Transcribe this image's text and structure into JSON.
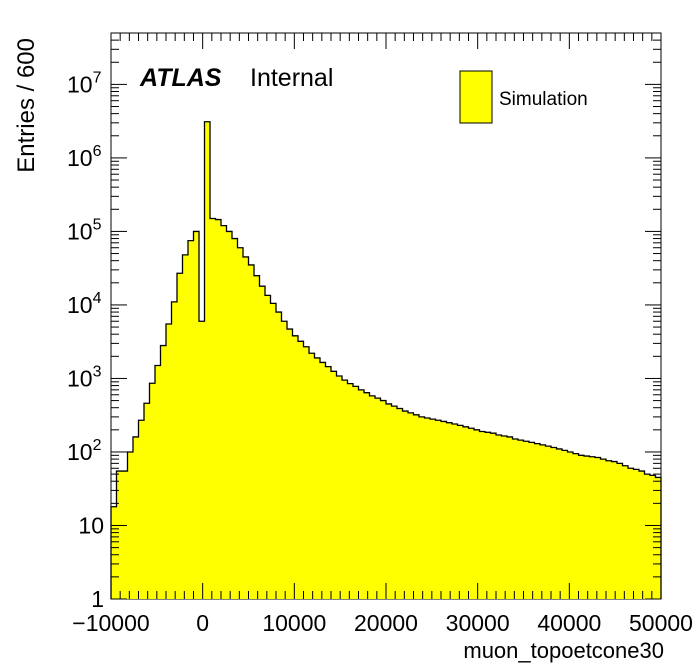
{
  "chart_data": {
    "type": "histogram",
    "experiment": "ATLAS",
    "status": "Internal",
    "xlabel": "muon_topoetcone30",
    "ylabel": "Entries / 600",
    "xlim": [
      -10000,
      50000
    ],
    "ylim": [
      1,
      50000000
    ],
    "yscale": "log",
    "bin_width": 600,
    "x_ticks": [
      "−10000",
      "0",
      "10000",
      "20000",
      "30000",
      "40000",
      "50000"
    ],
    "x_tick_values": [
      -10000,
      0,
      10000,
      20000,
      30000,
      40000,
      50000
    ],
    "y_ticks": [
      {
        "value": 1,
        "base": "1",
        "exp": ""
      },
      {
        "value": 10,
        "base": "10",
        "exp": ""
      },
      {
        "value": 100,
        "base": "10",
        "exp": "2"
      },
      {
        "value": 1000,
        "base": "10",
        "exp": "3"
      },
      {
        "value": 10000,
        "base": "10",
        "exp": "4"
      },
      {
        "value": 100000,
        "base": "10",
        "exp": "5"
      },
      {
        "value": 1000000,
        "base": "10",
        "exp": "6"
      },
      {
        "value": 10000000,
        "base": "10",
        "exp": "7"
      }
    ],
    "legend": {
      "position": "top-right",
      "entries": [
        {
          "name": "Simulation",
          "color": "#ffff00"
        }
      ]
    },
    "series": [
      {
        "name": "Simulation",
        "fill_color": "#ffff00",
        "line_color": "#000000",
        "x_start": -10000,
        "values": [
          18,
          55,
          55,
          100,
          160,
          270,
          460,
          860,
          1500,
          2800,
          5500,
          11000,
          27000,
          48000,
          75000,
          100000,
          6000,
          3100000,
          150000,
          145000,
          120000,
          100000,
          80000,
          60000,
          45000,
          35000,
          25000,
          18000,
          13500,
          10500,
          8000,
          6000,
          4700,
          3800,
          3200,
          2700,
          2200,
          1900,
          1650,
          1450,
          1250,
          1080,
          950,
          850,
          780,
          700,
          640,
          580,
          540,
          500,
          450,
          420,
          390,
          360,
          340,
          320,
          300,
          290,
          280,
          270,
          260,
          250,
          240,
          230,
          220,
          210,
          200,
          190,
          185,
          180,
          170,
          165,
          160,
          150,
          145,
          140,
          135,
          130,
          125,
          120,
          115,
          110,
          105,
          100,
          95,
          90,
          88,
          86,
          84,
          80,
          76,
          74,
          70,
          65,
          60,
          58,
          55,
          50,
          48,
          45
        ]
      }
    ]
  }
}
